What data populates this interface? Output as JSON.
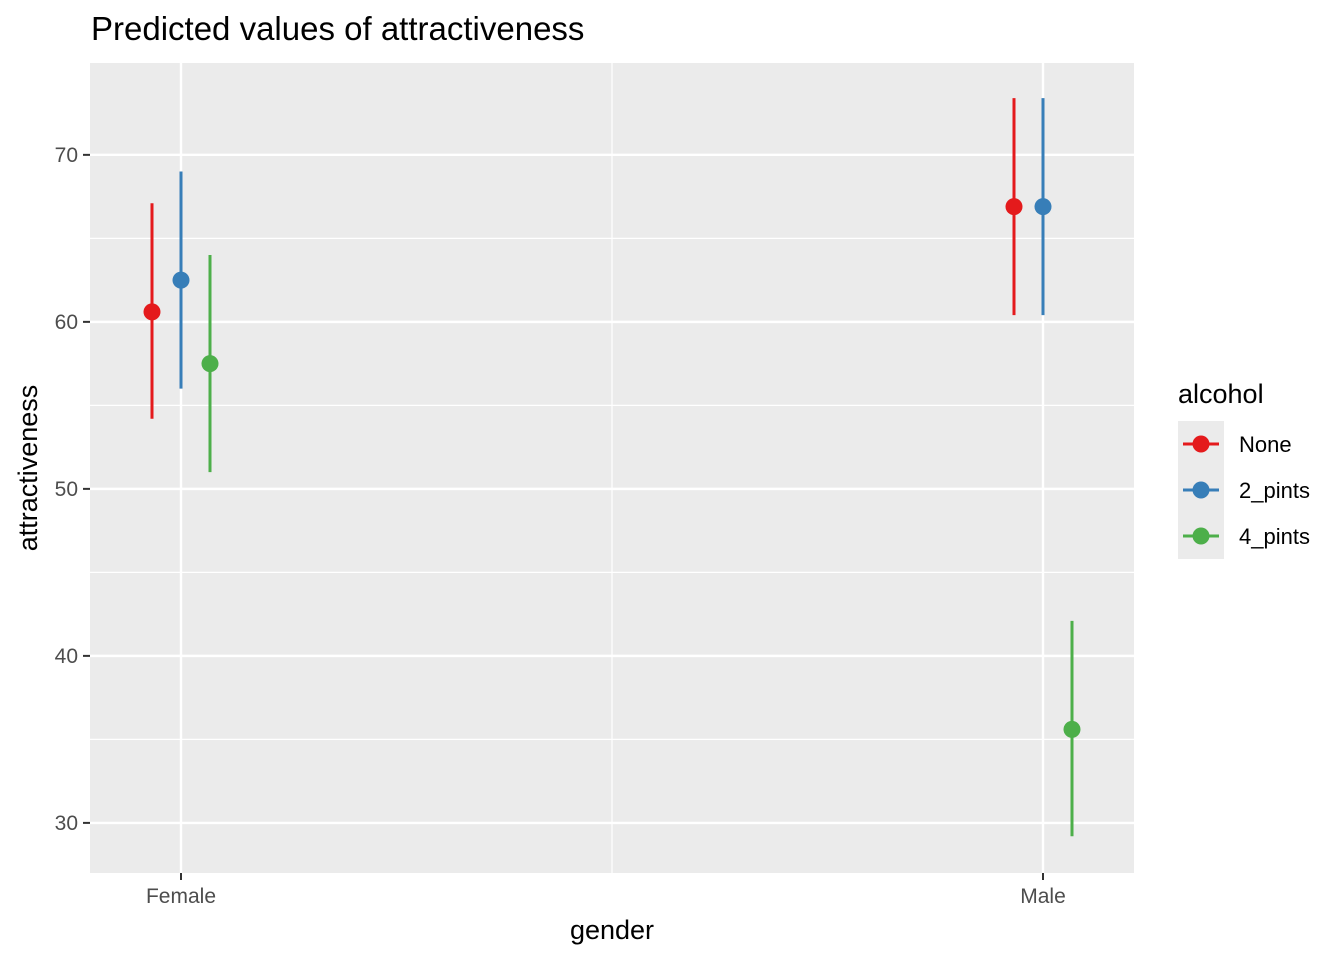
{
  "chart_data": {
    "type": "scatter",
    "title": "Predicted values of attractiveness",
    "xlabel": "gender",
    "ylabel": "attractiveness",
    "categories": [
      "Female",
      "Male"
    ],
    "ylim": [
      27,
      75.5
    ],
    "yticks": [
      30,
      40,
      50,
      60,
      70
    ],
    "grid": true,
    "legend_title": "alcohol",
    "legend_position": "right",
    "series": [
      {
        "name": "None",
        "color": "#E41A1C",
        "values": [
          60.6,
          66.9
        ],
        "lower": [
          54.2,
          60.4
        ],
        "upper": [
          67.1,
          73.4
        ]
      },
      {
        "name": "2_pints",
        "color": "#377EB8",
        "values": [
          62.5,
          66.9
        ],
        "lower": [
          56.0,
          60.4
        ],
        "upper": [
          69.0,
          73.4
        ]
      },
      {
        "name": "4_pints",
        "color": "#4DAF4A",
        "values": [
          57.5,
          35.6
        ],
        "lower": [
          51.0,
          29.2
        ],
        "upper": [
          64.0,
          42.1
        ]
      }
    ]
  }
}
